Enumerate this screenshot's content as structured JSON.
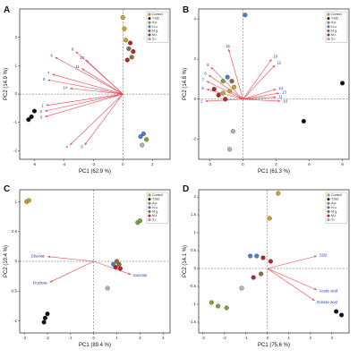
{
  "colors": {
    "loading_arrow": "#e8424d",
    "loading_label": "#1f2db0",
    "origin_line": "#555555",
    "frame": "#222222"
  },
  "legend_groups": [
    "Control",
    "Y182",
    "A.p.",
    "H.u.",
    "M.g.",
    "M.r.",
    "S.r."
  ],
  "legend_colors": [
    "#c9a227",
    "#111111",
    "#7aa33b",
    "#4c7fc9",
    "#8a6d3b",
    "#b5232e",
    "#b3b3b3"
  ],
  "chart_data": [
    {
      "panel": "A",
      "type": "scatter",
      "xlabel": "PC1 (62.9 %)",
      "ylabel": "PC2 (14.9 %)",
      "xlim": [
        -7,
        3.2
      ],
      "ylim": [
        -2.3,
        3.0
      ],
      "xticks": [
        -6,
        -4,
        -2,
        0,
        2
      ],
      "yticks": [
        -2,
        -1,
        0,
        1,
        2
      ],
      "points": [
        {
          "group": "Control",
          "x": 0.0,
          "y": 2.7
        },
        {
          "group": "Control",
          "x": 0.1,
          "y": 2.3
        },
        {
          "group": "Control",
          "x": 0.2,
          "y": 1.9
        },
        {
          "group": "Y182",
          "x": -6.2,
          "y": -0.8
        },
        {
          "group": "Y182",
          "x": -6.0,
          "y": -0.6
        },
        {
          "group": "Y182",
          "x": -6.4,
          "y": -0.9
        },
        {
          "group": "M.g.",
          "x": 0.4,
          "y": 1.6
        },
        {
          "group": "M.g.",
          "x": 0.6,
          "y": 1.3
        },
        {
          "group": "M.r.",
          "x": 0.5,
          "y": 1.8
        },
        {
          "group": "M.r.",
          "x": 0.7,
          "y": 1.5
        },
        {
          "group": "M.r.",
          "x": 0.3,
          "y": 1.2
        },
        {
          "group": "A.p.",
          "x": 1.6,
          "y": -1.6
        },
        {
          "group": "H.u.",
          "x": 1.2,
          "y": -1.5
        },
        {
          "group": "H.u.",
          "x": 1.4,
          "y": -1.4
        },
        {
          "group": "S.r.",
          "x": 1.3,
          "y": -1.8
        }
      ],
      "loadings": [
        {
          "label": "6",
          "x": -4.6,
          "y": 1.3
        },
        {
          "label": "8",
          "x": -3.2,
          "y": 1.5
        },
        {
          "label": "10",
          "x": -2.5,
          "y": 1.2
        },
        {
          "label": "11",
          "x": -2.8,
          "y": 0.9
        },
        {
          "label": "7",
          "x": -4.8,
          "y": 0.7
        },
        {
          "label": "9",
          "x": -5.1,
          "y": 0.5
        },
        {
          "label": "14",
          "x": -3.6,
          "y": 0.2
        },
        {
          "label": "1",
          "x": -5.2,
          "y": -0.4
        },
        {
          "label": "2",
          "x": -5.3,
          "y": -0.6
        },
        {
          "label": "3",
          "x": -5.3,
          "y": -0.8
        },
        {
          "label": "4",
          "x": -3.6,
          "y": -1.8
        },
        {
          "label": "5",
          "x": -2.6,
          "y": -1.8
        }
      ]
    },
    {
      "panel": "B",
      "type": "scatter",
      "xlabel": "PC1 (61.3 %)",
      "ylabel": "PC2 (14.8 %)",
      "xlim": [
        -4,
        9.6
      ],
      "ylim": [
        -3,
        4.5
      ],
      "xticks": [
        -3,
        0,
        3,
        6,
        9
      ],
      "yticks": [
        -2,
        0,
        2,
        4
      ],
      "points": [
        {
          "group": "Control",
          "x": -0.8,
          "y": 0.6
        },
        {
          "group": "Control",
          "x": -1.2,
          "y": 0.4
        },
        {
          "group": "Control",
          "x": -1.8,
          "y": 0.3
        },
        {
          "group": "Y182",
          "x": 9.0,
          "y": 0.8
        },
        {
          "group": "Y182",
          "x": 5.5,
          "y": -1.1
        },
        {
          "group": "A.p.",
          "x": -1.8,
          "y": 0.9
        },
        {
          "group": "H.u.",
          "x": 0.2,
          "y": 4.2
        },
        {
          "group": "H.u.",
          "x": -1.4,
          "y": 1.1
        },
        {
          "group": "M.g.",
          "x": -1.0,
          "y": 0.9
        },
        {
          "group": "M.r.",
          "x": -2.2,
          "y": 0.2
        },
        {
          "group": "M.r.",
          "x": -2.6,
          "y": 0.5
        },
        {
          "group": "M.r.",
          "x": -1.6,
          "y": 0.0
        },
        {
          "group": "S.r.",
          "x": -1.2,
          "y": -2.5
        },
        {
          "group": "S.r.",
          "x": -0.9,
          "y": -1.6
        }
      ],
      "loadings": [
        {
          "label": "15",
          "x": -1.3,
          "y": 2.5
        },
        {
          "label": "16",
          "x": 2.6,
          "y": 2.0
        },
        {
          "label": "12",
          "x": 2.9,
          "y": 1.7
        },
        {
          "label": "8",
          "x": -2.9,
          "y": 1.6
        },
        {
          "label": "6",
          "x": -3.1,
          "y": 1.2
        },
        {
          "label": "7",
          "x": -3.3,
          "y": 0.9
        },
        {
          "label": "9",
          "x": -3.3,
          "y": 0.5
        },
        {
          "label": "14",
          "x": 3.0,
          "y": 0.5
        },
        {
          "label": "13",
          "x": 3.3,
          "y": 0.3
        },
        {
          "label": "11",
          "x": 3.0,
          "y": 0.1
        },
        {
          "label": "10",
          "x": 3.4,
          "y": -0.1
        },
        {
          "label": "2",
          "x": -3.4,
          "y": -0.1
        }
      ]
    },
    {
      "panel": "C",
      "type": "scatter",
      "xlabel": "PC1 (89.4 %)",
      "ylabel": "PC2 (10.4 %)",
      "xlim": [
        -3.2,
        3.3
      ],
      "ylim": [
        -1.2,
        1.2
      ],
      "xticks": [
        -3,
        -2,
        -1,
        0,
        1,
        2,
        3
      ],
      "yticks": [
        -1.0,
        -0.5,
        0.0,
        0.5,
        1.0
      ],
      "points": [
        {
          "group": "Control",
          "x": -2.9,
          "y": 1.0
        },
        {
          "group": "Control",
          "x": -2.8,
          "y": 1.02
        },
        {
          "group": "Y182",
          "x": -2.1,
          "y": -0.95
        },
        {
          "group": "Y182",
          "x": -2.0,
          "y": -0.88
        },
        {
          "group": "Y182",
          "x": -2.15,
          "y": -1.02
        },
        {
          "group": "A.p.",
          "x": 1.9,
          "y": 0.65
        },
        {
          "group": "A.p.",
          "x": 2.0,
          "y": 0.68
        },
        {
          "group": "H.u.",
          "x": 0.85,
          "y": -0.05
        },
        {
          "group": "M.g.",
          "x": 1.0,
          "y": 0.0
        },
        {
          "group": "M.g.",
          "x": 1.1,
          "y": -0.05
        },
        {
          "group": "M.r.",
          "x": 0.95,
          "y": -0.1
        },
        {
          "group": "M.r.",
          "x": 1.15,
          "y": -0.12
        },
        {
          "group": "S.r.",
          "x": 0.6,
          "y": -0.45
        }
      ],
      "loadings": [
        {
          "label": "Glucose",
          "x": -2.0,
          "y": 0.08
        },
        {
          "label": "Fructose",
          "x": -1.9,
          "y": -0.35
        },
        {
          "label": "Sucrose",
          "x": 1.6,
          "y": -0.22
        }
      ]
    },
    {
      "panel": "D",
      "type": "scatter",
      "xlabel": "PC1 (75.6 %)",
      "ylabel": "PC2 (14.1 %)",
      "xlim": [
        -3.2,
        3.8
      ],
      "ylim": [
        -1.8,
        2.2
      ],
      "xticks": [
        -3,
        -2,
        -1,
        0,
        1,
        2,
        3
      ],
      "yticks": [
        -1.5,
        -1.0,
        -0.5,
        0.0,
        0.5,
        1.0,
        1.5,
        2.0
      ],
      "points": [
        {
          "group": "Control",
          "x": 0.1,
          "y": 1.4
        },
        {
          "group": "Control",
          "x": 0.5,
          "y": 2.1
        },
        {
          "group": "Y182",
          "x": 3.2,
          "y": -1.2
        },
        {
          "group": "Y182",
          "x": 3.45,
          "y": -1.3
        },
        {
          "group": "A.p.",
          "x": -2.3,
          "y": -1.05
        },
        {
          "group": "A.p.",
          "x": -2.6,
          "y": -0.95
        },
        {
          "group": "A.p.",
          "x": -1.9,
          "y": -1.1
        },
        {
          "group": "H.u.",
          "x": -0.8,
          "y": 0.35
        },
        {
          "group": "H.u.",
          "x": -0.5,
          "y": 0.35
        },
        {
          "group": "M.g.",
          "x": -0.3,
          "y": -0.15
        },
        {
          "group": "M.r.",
          "x": -0.65,
          "y": -0.25
        },
        {
          "group": "M.r.",
          "x": -0.2,
          "y": 0.3
        },
        {
          "group": "M.r.",
          "x": 0.15,
          "y": 0.2
        },
        {
          "group": "S.r.",
          "x": -1.2,
          "y": -0.55
        }
      ],
      "loadings": [
        {
          "label": "SO2",
          "x": 2.3,
          "y": 0.35
        },
        {
          "label": "Acetic acid",
          "x": 2.3,
          "y": -0.6
        },
        {
          "label": "D-lactic acid",
          "x": 2.2,
          "y": -0.9
        }
      ]
    }
  ]
}
